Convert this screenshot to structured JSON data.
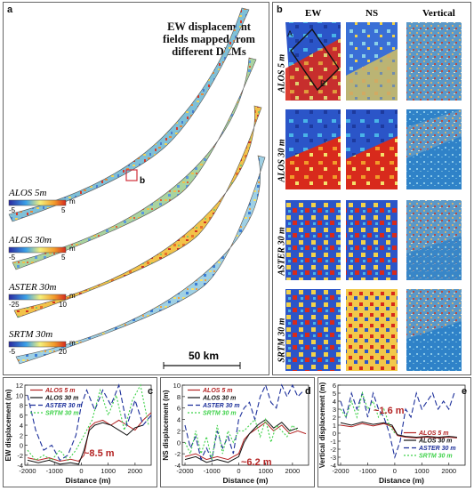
{
  "panel_a": {
    "letter": "a",
    "caption": "EW displacement fields mapped from different DEMs",
    "caption_lines": [
      "EW displacement",
      "fields mapped from",
      "different DEMs"
    ],
    "inset_marker": "b",
    "scalebar_label": "50 km",
    "strips": [
      {
        "name": "ALOS 5m",
        "unit": "m",
        "min": "-5",
        "max": "5"
      },
      {
        "name": "ALOS 30m",
        "unit": "m",
        "min": "-5",
        "max": "5"
      },
      {
        "name": "ASTER 30m",
        "unit": "m",
        "min": "-25",
        "max": "10"
      },
      {
        "name": "SRTM 30m",
        "unit": "m",
        "min": "-5",
        "max": "20"
      }
    ]
  },
  "panel_b": {
    "letter": "b",
    "columns": [
      "EW",
      "NS",
      "Vertical"
    ],
    "rows": [
      "ALOS 5 m",
      "ALOS 30 m",
      "ASTER 30 m",
      "SRTM 30 m"
    ],
    "profile_markers": [
      "A",
      "B"
    ]
  },
  "colors": {
    "blue": "#2b55c8",
    "red": "#d82a1c",
    "yellow": "#f2d24a",
    "alos5": "#b42323",
    "alos30": "#111111",
    "aster30": "#1c2f9a",
    "srtm30": "#3fd24a",
    "annotation": "#b42323"
  },
  "charts": {
    "c": {
      "letter": "c",
      "ylabel": "EW displacement (m)",
      "xlabel": "Distance (m)",
      "annotation": "~8.5 m",
      "legend": [
        "ALOS 5 m",
        "ALOS 30 m",
        "ASTER 30 m",
        "SRTM 30 m"
      ],
      "yticks": [
        "12",
        "10",
        "8",
        "6",
        "4",
        "2",
        "0",
        "-2",
        "-4"
      ],
      "xticks": [
        "-2000",
        "-1000",
        "0",
        "1000",
        "2000"
      ]
    },
    "d": {
      "letter": "d",
      "ylabel": "NS displacement (m)",
      "xlabel": "Distance (m)",
      "annotation": "~6.2 m",
      "legend": [
        "ALOS 5 m",
        "ALOS 30 m",
        "ASTER 30 m",
        "SRTM 30 m"
      ],
      "yticks": [
        "10",
        "8",
        "6",
        "4",
        "2",
        "0",
        "-2",
        "-4"
      ],
      "xticks": [
        "-2000",
        "-1000",
        "0",
        "1000",
        "2000"
      ]
    },
    "e": {
      "letter": "e",
      "ylabel": "Vertical displacement (m)",
      "xlabel": "Distance (m)",
      "annotation": "~1.6 m",
      "legend": [
        "ALOS 5 m",
        "ALOS 30 m",
        "ASTER 30 m",
        "SRTM 30 m"
      ],
      "yticks": [
        "6",
        "5",
        "4",
        "3",
        "2",
        "1",
        "0",
        "-1",
        "-2",
        "-3",
        "-4"
      ],
      "xticks": [
        "-2000",
        "-1000",
        "0",
        "1000",
        "2000"
      ]
    }
  },
  "chart_data": [
    {
      "type": "line",
      "panel": "c",
      "xlabel": "Distance (m)",
      "ylabel": "EW displacement (m)",
      "xlim": [
        -2100,
        2600
      ],
      "ylim": [
        -4,
        12
      ],
      "series": [
        {
          "name": "ALOS 5 m",
          "x": [
            -2000,
            -1600,
            -1200,
            -800,
            -400,
            -100,
            100,
            300,
            500,
            800,
            1100,
            1400,
            1700,
            2000,
            2300,
            2600
          ],
          "y": [
            -2.5,
            -3.0,
            -2.5,
            -3.2,
            -2.8,
            -3.2,
            -2.0,
            3.5,
            4.5,
            5.0,
            4.0,
            5.0,
            4.0,
            3.0,
            5.0,
            6.5
          ]
        },
        {
          "name": "ALOS 30 m",
          "x": [
            -2000,
            -1600,
            -1200,
            -800,
            -400,
            -100,
            100,
            300,
            500,
            800,
            1100,
            1400,
            1700,
            2000,
            2300
          ],
          "y": [
            -3.0,
            -3.5,
            -3.0,
            -3.8,
            -3.5,
            -3.8,
            -1.0,
            3.0,
            4.0,
            4.5,
            4.0,
            3.0,
            2.0,
            3.5,
            4.0
          ]
        },
        {
          "name": "ASTER 30 m",
          "x": [
            -2000,
            -1700,
            -1400,
            -1100,
            -800,
            -500,
            -200,
            0,
            200,
            500,
            800,
            1100,
            1400,
            1700,
            2000,
            2300,
            2600
          ],
          "y": [
            10,
            3,
            -1,
            0,
            -3,
            -2,
            2,
            8,
            11,
            7,
            11,
            8,
            12,
            4,
            9,
            4,
            6
          ]
        },
        {
          "name": "SRTM 30 m",
          "x": [
            -2000,
            -1700,
            -1400,
            -1100,
            -800,
            -500,
            -200,
            100,
            400,
            700,
            1000,
            1300,
            1600,
            1900,
            2200,
            2500
          ],
          "y": [
            -1,
            -3,
            -2,
            -3,
            -1,
            -3,
            -1,
            2,
            5,
            11,
            6,
            10,
            3,
            9,
            12,
            4
          ]
        }
      ]
    },
    {
      "type": "line",
      "panel": "d",
      "xlabel": "Distance (m)",
      "ylabel": "NS displacement (m)",
      "xlim": [
        -2100,
        2600
      ],
      "ylim": [
        -4,
        10
      ],
      "series": [
        {
          "name": "ALOS 5 m",
          "x": [
            -2000,
            -1600,
            -1200,
            -800,
            -400,
            0,
            200,
            400,
            700,
            1000,
            1300,
            1600,
            1900,
            2200,
            2500
          ],
          "y": [
            -2.5,
            -2.0,
            -3.0,
            -2.5,
            -3.0,
            -2.0,
            0.5,
            1.5,
            2.5,
            3.5,
            2.0,
            3.0,
            1.5,
            2.0,
            1.5
          ]
        },
        {
          "name": "ALOS 30 m",
          "x": [
            -2000,
            -1600,
            -1200,
            -800,
            -400,
            0,
            200,
            400,
            700,
            1000,
            1300,
            1600,
            1900,
            2200
          ],
          "y": [
            -3.0,
            -2.5,
            -3.5,
            -3.0,
            -3.5,
            -2.5,
            0.0,
            1.5,
            3.0,
            4.0,
            2.5,
            3.5,
            2.0,
            2.5
          ]
        },
        {
          "name": "ASTER 30 m",
          "x": [
            -2000,
            -1800,
            -1600,
            -1400,
            -1200,
            -1000,
            -800,
            -600,
            -400,
            -200,
            0,
            200,
            400,
            600,
            800,
            1000,
            1200,
            1400,
            1600,
            1800,
            2000,
            2200,
            2400
          ],
          "y": [
            3,
            -1,
            1,
            -3,
            -1,
            -3,
            2,
            -1,
            1,
            -2,
            4,
            6,
            7,
            4,
            8,
            10,
            7,
            6,
            10,
            8,
            10,
            8,
            9
          ]
        },
        {
          "name": "SRTM 30 m",
          "x": [
            -2000,
            -1800,
            -1600,
            -1400,
            -1200,
            -1000,
            -800,
            -600,
            -400,
            -200,
            0,
            200,
            400,
            600,
            800,
            1000,
            1200,
            1400,
            1600,
            1800,
            2000,
            2200
          ],
          "y": [
            0,
            -2,
            2,
            -2,
            1,
            -3,
            3,
            -2,
            2,
            0,
            2,
            2,
            3,
            4,
            1,
            4,
            0,
            3,
            2,
            1,
            3,
            2
          ]
        }
      ]
    },
    {
      "type": "line",
      "panel": "e",
      "xlabel": "Distance (m)",
      "ylabel": "Vertical displacement (m)",
      "xlim": [
        -2100,
        2600
      ],
      "ylim": [
        -4,
        6
      ],
      "series": [
        {
          "name": "ALOS 5 m",
          "x": [
            -2000,
            -1600,
            -1200,
            -800,
            -400,
            -100,
            100,
            400,
            800,
            1200,
            1600,
            2000,
            2300
          ],
          "y": [
            1.0,
            0.8,
            1.2,
            0.9,
            1.2,
            0.8,
            -0.3,
            -0.5,
            -0.6,
            -0.5,
            -0.6,
            -0.5,
            -0.6
          ]
        },
        {
          "name": "ALOS 30 m",
          "x": [
            -2000,
            -1600,
            -1200,
            -800,
            -400,
            -100,
            100,
            400,
            800,
            1200,
            1600,
            2000,
            2300
          ],
          "y": [
            1.3,
            1.0,
            1.4,
            1.1,
            1.3,
            1.0,
            -0.2,
            -0.4,
            -0.5,
            -0.4,
            -0.5,
            -0.4,
            -0.5
          ]
        },
        {
          "name": "ASTER 30 m",
          "x": [
            -2000,
            -1800,
            -1600,
            -1400,
            -1200,
            -1000,
            -800,
            -600,
            -400,
            -200,
            0,
            200,
            400,
            600,
            800,
            1000,
            1200,
            1400,
            1600,
            1800,
            2000,
            2200
          ],
          "y": [
            4,
            2,
            5,
            3,
            5,
            2,
            5,
            3,
            2,
            0,
            -3,
            -1,
            3,
            2,
            5,
            3,
            4,
            5,
            3,
            4,
            3,
            5
          ]
        },
        {
          "name": "SRTM 30 m",
          "x": [
            -2000,
            -1800,
            -1600,
            -1400,
            -1200,
            -1000,
            -800,
            -600,
            -400,
            -200,
            0
          ],
          "y": [
            3,
            2,
            4,
            2,
            5,
            3,
            4,
            2,
            3,
            1,
            0
          ]
        }
      ]
    }
  ]
}
